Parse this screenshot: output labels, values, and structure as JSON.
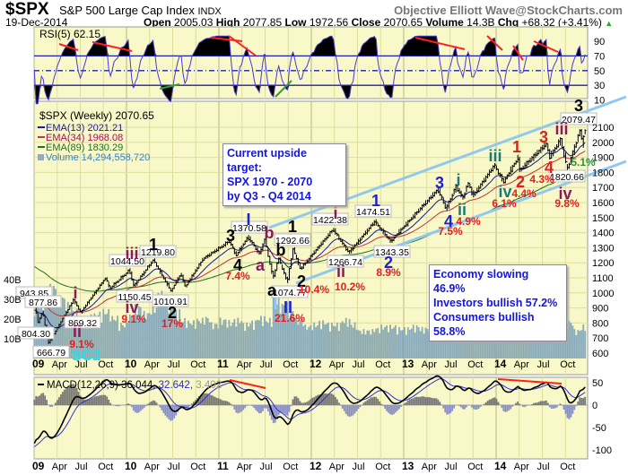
{
  "header": {
    "symbol": "$SPX",
    "name": "S&P 500 Large Cap Index",
    "exchange": "INDX",
    "brand": "Objective Elliott Wave@StockCharts.com",
    "date": "19-Dec-2014",
    "open_label": "Open",
    "open": "2005.03",
    "high_label": "High",
    "high": "2077.85",
    "low_label": "Low",
    "low": "1972.56",
    "close_label": "Close",
    "close": "2070.65",
    "volume_label": "Volume",
    "volume": "14.3B",
    "chg_label": "Chg",
    "chg": "+68.32 (+3.41%)"
  },
  "legend": {
    "rsi": "RSI(5) 62.15",
    "price": "$SPX (Weekly) 2070.65",
    "ema13": "EMA(13) 2021.21",
    "ema34": "EMA(34) 1968.08",
    "ema89": "EMA(89) 1830.29",
    "volume": "Volume 14,294,558,720",
    "macd_a": "MACD(12,26,9) 36.044,",
    "macd_b": "32.642,",
    "macd_c": "3.402"
  },
  "notes": {
    "target": [
      "Current upside target:",
      "SPX 1970 - 2070",
      "by Q3 - Q4 2014"
    ],
    "sentiment": [
      "Economy slowing 46.9%",
      "Investors bullish 57.2%",
      "Consumers bullish 58.8%"
    ]
  },
  "colors": {
    "background": "#f8f8c8",
    "ema13": "#1a1a9a",
    "ema34": "#c03040",
    "ema89": "#207020",
    "volume": "#8aaab8",
    "channel": "#90c8f0",
    "rsi_line": "#4a3ad0",
    "divergence": "#ff2020",
    "wave_red": "#e02020",
    "wave_purple": "#8a1a5a",
    "wave_blue": "#2020d0",
    "wave_teal": "#1a7a7a",
    "wave_black": "#000000"
  },
  "chart_data": {
    "type": "ohlc",
    "x_range": [
      "2009-01",
      "2014-12"
    ],
    "x_ticks": [
      "09",
      "Apr",
      "Jul",
      "Oct",
      "10",
      "Apr",
      "Jul",
      "Oct",
      "11",
      "Apr",
      "Jul",
      "Oct",
      "12",
      "Apr",
      "Jul",
      "Oct",
      "13",
      "Apr",
      "Jul",
      "Oct",
      "14",
      "Apr",
      "Jul",
      "Oct"
    ],
    "price_axis": {
      "ticks": [
        2100,
        2000,
        1900,
        1800,
        1700,
        1600,
        1500,
        1400,
        1300,
        1200,
        1100,
        1000,
        900,
        800,
        700,
        600
      ],
      "ylim": [
        560,
        2180
      ]
    },
    "volume_axis": {
      "ticks": [
        "10B",
        "20B",
        "30B",
        "40B"
      ]
    },
    "rsi_axis": {
      "ticks": [
        90,
        70,
        50,
        30,
        10
      ],
      "levels": [
        70,
        50,
        30
      ]
    },
    "macd_axis": {
      "ticks": [
        50,
        0,
        -50,
        -100
      ]
    },
    "price_pivots": [
      [
        "2009-01-02",
        931
      ],
      [
        "2009-01-06",
        943.85
      ],
      [
        "2009-01-23",
        804.3
      ],
      [
        "2009-02-09",
        877.86
      ],
      [
        "2009-03-06",
        666.79
      ],
      [
        "2009-06-12",
        956
      ],
      [
        "2009-07-10",
        869.32
      ],
      [
        "2009-10-16",
        1100
      ],
      [
        "2009-11-02",
        1030
      ],
      [
        "2010-01-19",
        1150.45
      ],
      [
        "2010-02-05",
        1044.5
      ],
      [
        "2010-04-23",
        1219.8
      ],
      [
        "2010-07-02",
        1010.91
      ],
      [
        "2010-08-09",
        1129
      ],
      [
        "2010-08-27",
        1040
      ],
      [
        "2010-11-05",
        1225
      ],
      [
        "2011-02-18",
        1344
      ],
      [
        "2011-03-16",
        1249
      ],
      [
        "2011-05-02",
        1370.58
      ],
      [
        "2011-06-16",
        1258
      ],
      [
        "2011-07-07",
        1356
      ],
      [
        "2011-08-09",
        1101
      ],
      [
        "2011-08-31",
        1230
      ],
      [
        "2011-10-04",
        1074.77
      ],
      [
        "2011-10-27",
        1292.66
      ],
      [
        "2011-11-25",
        1158
      ],
      [
        "2012-04-02",
        1422.38
      ],
      [
        "2012-06-04",
        1266.74
      ],
      [
        "2012-09-14",
        1474.51
      ],
      [
        "2012-11-16",
        1343.35
      ],
      [
        "2013-05-22",
        1687
      ],
      [
        "2013-06-24",
        1560
      ],
      [
        "2013-08-02",
        1709
      ],
      [
        "2013-08-28",
        1627
      ],
      [
        "2013-09-18",
        1729
      ],
      [
        "2013-10-09",
        1646
      ],
      [
        "2013-12-31",
        1849
      ],
      [
        "2014-02-05",
        1737
      ],
      [
        "2014-04-04",
        1897
      ],
      [
        "2014-04-11",
        1814
      ],
      [
        "2014-07-24",
        1991
      ],
      [
        "2014-08-07",
        1904
      ],
      [
        "2014-09-19",
        2019
      ],
      [
        "2014-10-15",
        1820.66
      ],
      [
        "2014-12-05",
        2079.47
      ],
      [
        "2014-12-16",
        1972.56
      ],
      [
        "2014-12-19",
        2070.65
      ]
    ],
    "monthly_volume_billions": [
      25,
      28,
      33,
      28,
      25,
      22,
      18,
      20,
      21,
      22,
      19,
      16,
      20,
      24,
      21,
      24,
      30,
      26,
      22,
      18,
      17,
      18,
      19,
      16,
      18,
      17,
      18,
      16,
      17,
      19,
      18,
      28,
      25,
      22,
      18,
      15,
      16,
      17,
      16,
      16,
      18,
      16,
      13,
      13,
      14,
      15,
      15,
      14,
      14,
      15,
      14,
      14,
      15,
      16,
      13,
      12,
      13,
      14,
      13,
      12,
      14,
      16,
      14,
      13,
      12,
      13,
      12,
      12,
      13,
      17,
      13,
      15
    ],
    "price_labels": [
      "943.85",
      "877.86",
      "804.30",
      "666.79",
      "869.32",
      "1150.45",
      "1044.50",
      "1219.80",
      "1010.91",
      "1370.58",
      "1292.66",
      "1074.77",
      "1422.38",
      "1266.74",
      "1474.51",
      "1343.35",
      "1820.66",
      "2079.47"
    ],
    "wave_labels": [
      {
        "t": "I",
        "c": "wave_blue"
      },
      {
        "t": "b",
        "c": "wave_purple"
      },
      {
        "t": "1",
        "c": "wave_black"
      },
      {
        "t": "3",
        "c": "wave_black"
      },
      {
        "t": "b",
        "c": "wave_black"
      },
      {
        "t": "a",
        "c": "wave_purple"
      },
      {
        "t": "4",
        "c": "wave_black"
      },
      {
        "t": "7.4%",
        "c": "wave_red"
      },
      {
        "t": "a",
        "c": "wave_black"
      },
      {
        "t": "II",
        "c": "wave_blue"
      },
      {
        "t": "21.6%",
        "c": "wave_red"
      },
      {
        "t": "2",
        "c": "wave_black"
      },
      {
        "t": "1",
        "c": "wave_black"
      },
      {
        "t": "iii",
        "c": "wave_purple"
      },
      {
        "t": "i",
        "c": "wave_purple"
      },
      {
        "t": "iv",
        "c": "wave_purple"
      },
      {
        "t": "9.1%",
        "c": "wave_red"
      },
      {
        "t": "ii",
        "c": "wave_purple"
      },
      {
        "t": "9.1%",
        "c": "wave_red"
      },
      {
        "t": "2",
        "c": "wave_black"
      },
      {
        "t": "17%",
        "c": "wave_red"
      },
      {
        "t": "SC2",
        "c": "sc2"
      },
      {
        "t": "10.4%",
        "c": "wave_red"
      },
      {
        "t": "i",
        "c": "wave_purple"
      },
      {
        "t": "ii",
        "c": "wave_purple"
      },
      {
        "t": "10.2%",
        "c": "wave_red"
      },
      {
        "t": "1",
        "c": "wave_blue"
      },
      {
        "t": "2",
        "c": "wave_blue"
      },
      {
        "t": "8.9%",
        "c": "wave_red"
      },
      {
        "t": "3",
        "c": "wave_blue"
      },
      {
        "t": "4",
        "c": "wave_blue"
      },
      {
        "t": "7.5%",
        "c": "wave_red"
      },
      {
        "t": "i",
        "c": "wave_teal"
      },
      {
        "t": "ii",
        "c": "wave_teal"
      },
      {
        "t": "4.9%",
        "c": "wave_red"
      },
      {
        "t": "iii",
        "c": "wave_teal"
      },
      {
        "t": "iv",
        "c": "wave_teal"
      },
      {
        "t": "6.1%",
        "c": "wave_red"
      },
      {
        "t": "1",
        "c": "wave_red"
      },
      {
        "t": "2",
        "c": "wave_red"
      },
      {
        "t": "4.4%",
        "c": "wave_red"
      },
      {
        "t": "3",
        "c": "wave_red"
      },
      {
        "t": "3",
        "c": "wave_black"
      },
      {
        "t": "iii",
        "c": "wave_purple"
      },
      {
        "t": "4",
        "c": "wave_red"
      },
      {
        "t": "4.3%",
        "c": "wave_red"
      },
      {
        "t": "5.1%",
        "c": "green"
      },
      {
        "t": "iv",
        "c": "wave_purple"
      },
      {
        "t": "9.8%",
        "c": "wave_red"
      }
    ]
  }
}
